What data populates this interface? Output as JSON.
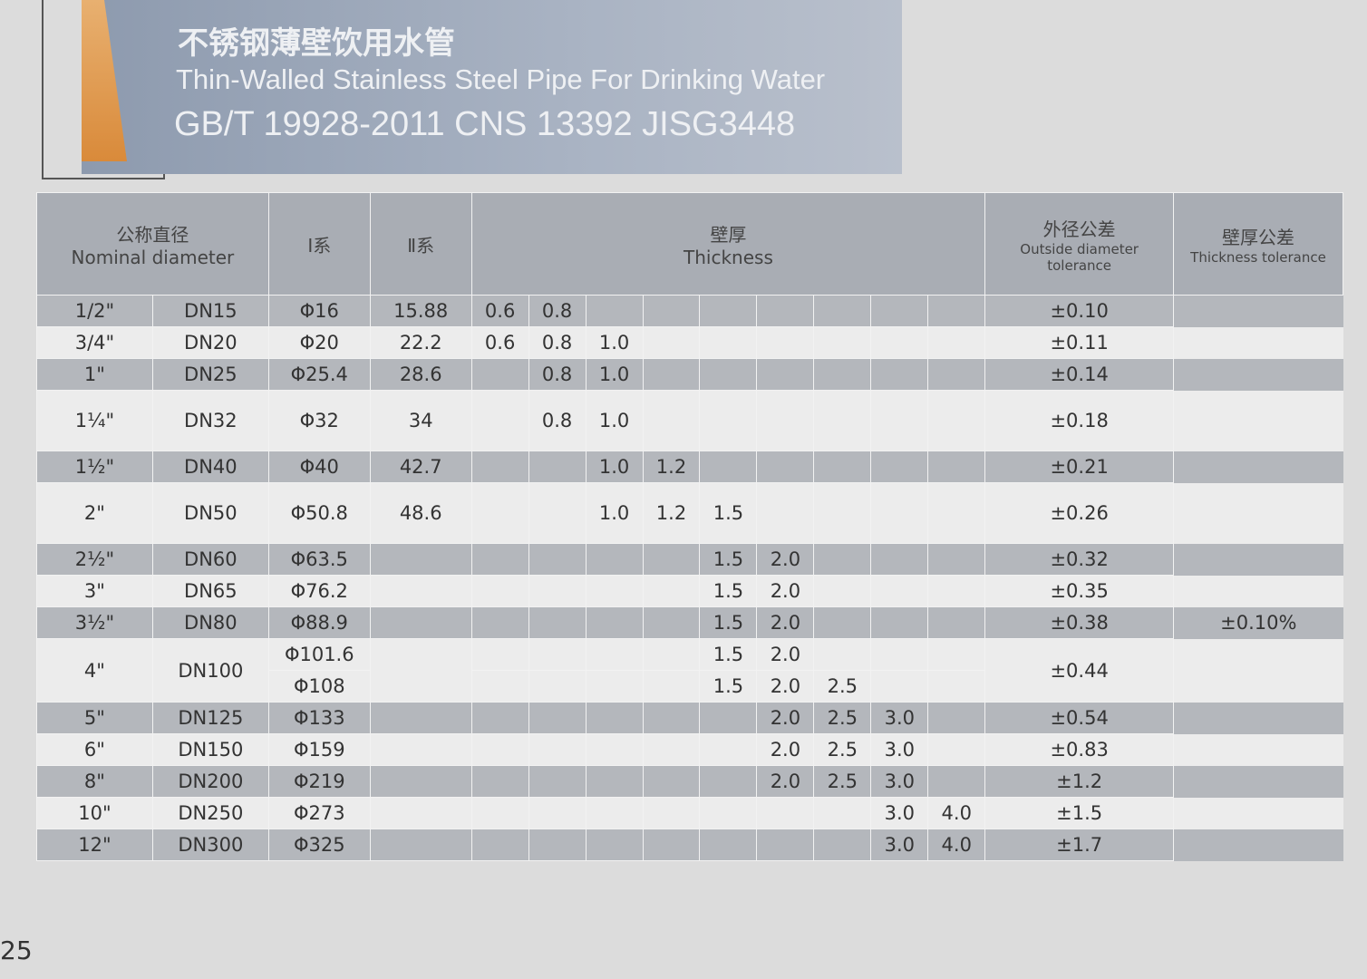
{
  "header": {
    "title_cn": "不锈钢薄壁饮用水管",
    "title_en": "Thin-Walled Stainless Steel Pipe For Drinking Water",
    "standards": "GB/T 19928-2011 CNS 13392 JISG3448"
  },
  "table": {
    "headers": {
      "nominal_cn": "公称直径",
      "nominal_en": "Nominal diameter",
      "series1": "Ⅰ系",
      "series2": "Ⅱ系",
      "thickness_cn": "壁厚",
      "thickness_en": "Thickness",
      "od_tol_cn": "外径公差",
      "od_tol_en1": "Outside diameter",
      "od_tol_en2": "tolerance",
      "th_tol_cn": "壁厚公差",
      "th_tol_en": "Thickness tolerance"
    },
    "rows": [
      {
        "inch": "1/2\"",
        "dn": "DN15",
        "s1": [
          "Φ16"
        ],
        "s2": "15.88",
        "t": [
          [
            "0.6",
            "0.8",
            "",
            "",
            "",
            "",
            "",
            "",
            ""
          ]
        ],
        "od": "±0.10",
        "shade": "g"
      },
      {
        "inch": "3/4\"",
        "dn": "DN20",
        "s1": [
          "Φ20"
        ],
        "s2": "22.2",
        "t": [
          [
            "0.6",
            "0.8",
            "1.0",
            "",
            "",
            "",
            "",
            "",
            ""
          ]
        ],
        "od": "±0.11",
        "shade": "w"
      },
      {
        "inch": "1\"",
        "dn": "DN25",
        "s1": [
          "Φ25.4"
        ],
        "s2": "28.6",
        "t": [
          [
            "",
            "0.8",
            "1.0",
            "",
            "",
            "",
            "",
            "",
            ""
          ]
        ],
        "od": "±0.14",
        "shade": "g"
      },
      {
        "inch": "1¼\"",
        "dn": "DN32",
        "s1": [
          "Φ32"
        ],
        "s2": "34",
        "t": [
          [
            "",
            "0.8",
            "1.0",
            "",
            "",
            "",
            "",
            "",
            ""
          ]
        ],
        "od": "±0.18",
        "shade": "w",
        "tall": true
      },
      {
        "inch": "1½\"",
        "dn": "DN40",
        "s1": [
          "Φ40"
        ],
        "s2": "42.7",
        "t": [
          [
            "",
            "",
            "1.0",
            "1.2",
            "",
            "",
            "",
            "",
            ""
          ]
        ],
        "od": "±0.21",
        "shade": "g"
      },
      {
        "inch": "2\"",
        "dn": "DN50",
        "s1": [
          "Φ50.8"
        ],
        "s2": "48.6",
        "t": [
          [
            "",
            "",
            "1.0",
            "1.2",
            "1.5",
            "",
            "",
            "",
            ""
          ]
        ],
        "od": "±0.26",
        "shade": "w",
        "tall": true
      },
      {
        "inch": "2½\"",
        "dn": "DN60",
        "s1": [
          "Φ63.5"
        ],
        "s2": "",
        "t": [
          [
            "",
            "",
            "",
            "",
            "1.5",
            "2.0",
            "",
            "",
            ""
          ]
        ],
        "od": "±0.32",
        "shade": "g"
      },
      {
        "inch": "3\"",
        "dn": "DN65",
        "s1": [
          "Φ76.2"
        ],
        "s2": "",
        "t": [
          [
            "",
            "",
            "",
            "",
            "1.5",
            "2.0",
            "",
            "",
            ""
          ]
        ],
        "od": "±0.35",
        "shade": "w"
      },
      {
        "inch": "3½\"",
        "dn": "DN80",
        "s1": [
          "Φ88.9"
        ],
        "s2": "",
        "t": [
          [
            "",
            "",
            "",
            "",
            "1.5",
            "2.0",
            "",
            "",
            ""
          ]
        ],
        "od": "±0.38",
        "shade": "g",
        "th_tol": "±0.10%"
      },
      {
        "inch": "4\"",
        "dn": "DN100",
        "s1": [
          "Φ101.6",
          "Φ108"
        ],
        "s2": "",
        "t": [
          [
            "",
            "",
            "",
            "",
            "1.5",
            "2.0",
            "",
            "",
            ""
          ],
          [
            "",
            "",
            "",
            "",
            "1.5",
            "2.0",
            "2.5",
            "",
            ""
          ]
        ],
        "od": "±0.44",
        "shade": "w"
      },
      {
        "inch": "5\"",
        "dn": "DN125",
        "s1": [
          "Φ133"
        ],
        "s2": "",
        "t": [
          [
            "",
            "",
            "",
            "",
            "",
            "2.0",
            "2.5",
            "3.0",
            ""
          ]
        ],
        "od": "±0.54",
        "shade": "g"
      },
      {
        "inch": "6\"",
        "dn": "DN150",
        "s1": [
          "Φ159"
        ],
        "s2": "",
        "t": [
          [
            "",
            "",
            "",
            "",
            "",
            "2.0",
            "2.5",
            "3.0",
            ""
          ]
        ],
        "od": "±0.83",
        "shade": "w"
      },
      {
        "inch": "8\"",
        "dn": "DN200",
        "s1": [
          "Φ219"
        ],
        "s2": "",
        "t": [
          [
            "",
            "",
            "",
            "",
            "",
            "2.0",
            "2.5",
            "3.0",
            ""
          ]
        ],
        "od": "±1.2",
        "shade": "g"
      },
      {
        "inch": "10\"",
        "dn": "DN250",
        "s1": [
          "Φ273"
        ],
        "s2": "",
        "t": [
          [
            "",
            "",
            "",
            "",
            "",
            "",
            "",
            "3.0",
            "4.0"
          ]
        ],
        "od": "±1.5",
        "shade": "w"
      },
      {
        "inch": "12\"",
        "dn": "DN300",
        "s1": [
          "Φ325"
        ],
        "s2": "",
        "t": [
          [
            "",
            "",
            "",
            "",
            "",
            "",
            "",
            "3.0",
            "4.0"
          ]
        ],
        "od": "±1.7",
        "shade": "g"
      }
    ]
  },
  "page_number": "25"
}
